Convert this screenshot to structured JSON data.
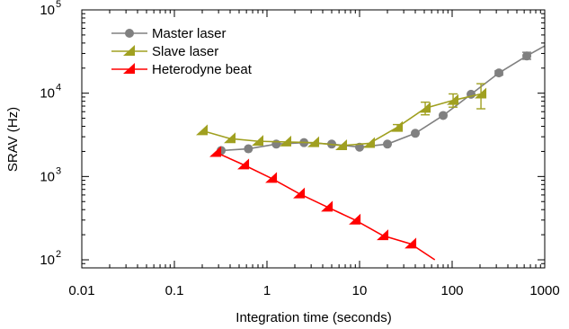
{
  "chart_data": {
    "type": "line",
    "xlabel": "Integration time (seconds)",
    "ylabel": "SRAV (Hz)",
    "x_scale": "log",
    "y_scale": "log",
    "xlim": [
      0.01,
      1000
    ],
    "ylim": [
      80,
      100000
    ],
    "x_ticks": [
      {
        "value": 0.01,
        "label": "0.01"
      },
      {
        "value": 0.1,
        "label": "0.1"
      },
      {
        "value": 1,
        "label": "1"
      },
      {
        "value": 10,
        "label": "10"
      },
      {
        "value": 100,
        "label": "100"
      },
      {
        "value": 1000,
        "label": "1000"
      }
    ],
    "y_ticks": [
      {
        "value": 100,
        "label_base": "10",
        "label_exp": "2"
      },
      {
        "value": 1000,
        "label_base": "10",
        "label_exp": "3"
      },
      {
        "value": 10000,
        "label_base": "10",
        "label_exp": "4"
      },
      {
        "value": 100000,
        "label_base": "10",
        "label_exp": "5"
      }
    ],
    "grid": false,
    "legend_position": "top-left",
    "series": [
      {
        "name": "Master laser",
        "color": "#808080",
        "marker": "circle",
        "points": [
          {
            "x": 0.32,
            "y": 2050
          },
          {
            "x": 0.63,
            "y": 2150
          },
          {
            "x": 1.26,
            "y": 2450
          },
          {
            "x": 2.51,
            "y": 2550
          },
          {
            "x": 5.0,
            "y": 2450
          },
          {
            "x": 10.0,
            "y": 2250
          },
          {
            "x": 20.0,
            "y": 2450
          },
          {
            "x": 40.0,
            "y": 3300
          },
          {
            "x": 80.0,
            "y": 5400
          },
          {
            "x": 160.0,
            "y": 9700
          },
          {
            "x": 320.0,
            "y": 17500,
            "err": [
              16500,
              18500
            ]
          },
          {
            "x": 640.0,
            "y": 28000,
            "err": [
              25500,
              31000
            ]
          }
        ],
        "line_tail": {
          "x": 1000,
          "y": 37000
        }
      },
      {
        "name": "Slave laser",
        "color": "#a0a020",
        "marker": "triangle",
        "points": [
          {
            "x": 0.2,
            "y": 3550
          },
          {
            "x": 0.4,
            "y": 2850
          },
          {
            "x": 0.8,
            "y": 2650
          },
          {
            "x": 1.6,
            "y": 2600
          },
          {
            "x": 3.2,
            "y": 2550
          },
          {
            "x": 6.4,
            "y": 2350
          },
          {
            "x": 12.8,
            "y": 2500
          },
          {
            "x": 25.6,
            "y": 3900,
            "err": [
              3600,
              4200
            ]
          },
          {
            "x": 51.2,
            "y": 6600,
            "err": [
              5500,
              7800
            ]
          },
          {
            "x": 102.4,
            "y": 8200,
            "err": [
              6800,
              9800
            ]
          },
          {
            "x": 204.8,
            "y": 9800,
            "err": [
              6500,
              13000
            ]
          }
        ]
      },
      {
        "name": "Heterodyne beat",
        "color": "#ff0000",
        "marker": "triangle",
        "points": [
          {
            "x": 0.28,
            "y": 1950
          },
          {
            "x": 0.56,
            "y": 1380
          },
          {
            "x": 1.12,
            "y": 950
          },
          {
            "x": 2.24,
            "y": 620
          },
          {
            "x": 4.48,
            "y": 430
          },
          {
            "x": 8.96,
            "y": 300
          },
          {
            "x": 17.9,
            "y": 195
          },
          {
            "x": 35.8,
            "y": 155
          }
        ],
        "line_tail": {
          "x": 65,
          "y": 100
        }
      }
    ]
  }
}
